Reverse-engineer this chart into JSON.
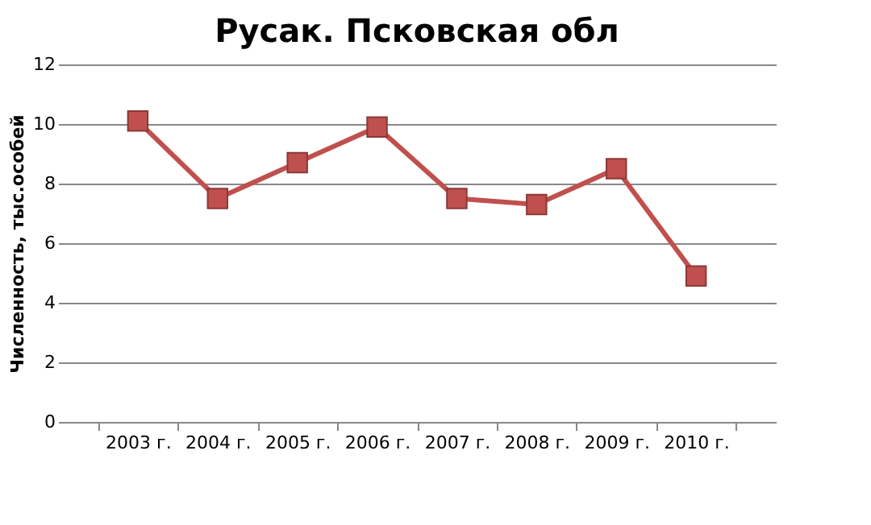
{
  "chart_data": {
    "type": "line",
    "title": "Русак. Псковская обл",
    "ylabel": "Численность, тыс.особей",
    "categories": [
      "2003 г.",
      "2004 г.",
      "2005 г.",
      "2006 г.",
      "2007 г.",
      "2008 г.",
      "2009 г.",
      "2010 г."
    ],
    "series": [
      {
        "color": "#c0504d",
        "values": [
          10.1,
          7.5,
          8.7,
          9.9,
          7.5,
          7.3,
          8.5,
          4.9
        ]
      }
    ],
    "ylim": [
      0,
      12
    ],
    "yticks": [
      0,
      2,
      4,
      6,
      8,
      10,
      12
    ],
    "grid": "y",
    "marker": "square",
    "line_style": "solid"
  }
}
